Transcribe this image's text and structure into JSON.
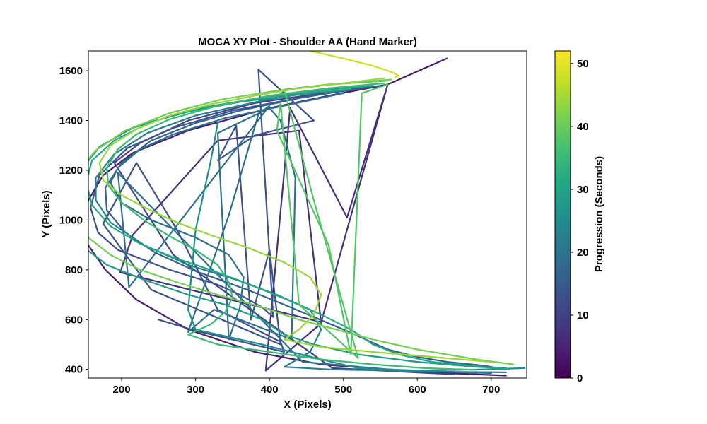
{
  "chart_data": {
    "type": "line",
    "title": "MOCA XY Plot - Shoulder AA (Hand Marker)",
    "xlabel": "X (Pixels)",
    "ylabel": "Y (Pixels)",
    "xlim": [
      155,
      748
    ],
    "ylim": [
      365,
      1680
    ],
    "x_ticks": [
      200,
      300,
      400,
      500,
      600,
      700
    ],
    "y_ticks": [
      400,
      600,
      800,
      1000,
      1200,
      1400,
      1600
    ],
    "grid": false,
    "colorbar": {
      "label": "Progression (Seconds)",
      "range": [
        0,
        52
      ],
      "ticks": [
        0,
        10,
        20,
        30,
        40,
        50
      ],
      "colormap": "viridis"
    },
    "series": [
      {
        "color_value": 4,
        "points": [
          [
            720,
            375
          ],
          [
            600,
            390
          ],
          [
            470,
            420
          ],
          [
            380,
            470
          ],
          [
            290,
            560
          ],
          [
            220,
            680
          ],
          [
            178,
            800
          ],
          [
            150,
            920
          ],
          [
            148,
            1000
          ],
          [
            155,
            1080
          ],
          [
            175,
            1180
          ],
          [
            215,
            1270
          ],
          [
            290,
            1360
          ],
          [
            400,
            1450
          ],
          [
            480,
            1500
          ],
          [
            560,
            1545
          ],
          [
            640,
            1650
          ]
        ]
      },
      {
        "color_value": 7,
        "points": [
          [
            560,
            1545
          ],
          [
            505,
            1010
          ],
          [
            428,
            1450
          ],
          [
            395,
            395
          ],
          [
            470,
            585
          ],
          [
            440,
            1360
          ],
          [
            330,
            1320
          ],
          [
            215,
            940
          ],
          [
            198,
            790
          ],
          [
            470,
            590
          ],
          [
            560,
            1545
          ]
        ]
      },
      {
        "color_value": 10,
        "points": [
          [
            550,
            1540
          ],
          [
            470,
            1510
          ],
          [
            380,
            1470
          ],
          [
            290,
            1400
          ],
          [
            225,
            1310
          ],
          [
            190,
            1230
          ],
          [
            270,
            860
          ],
          [
            485,
            405
          ],
          [
            650,
            380
          ]
        ]
      },
      {
        "color_value": 13,
        "points": [
          [
            540,
            1535
          ],
          [
            455,
            1500
          ],
          [
            350,
            1440
          ],
          [
            270,
            1370
          ],
          [
            208,
            1290
          ],
          [
            170,
            1180
          ],
          [
            158,
            1050
          ],
          [
            168,
            950
          ],
          [
            195,
            880
          ],
          [
            265,
            800
          ],
          [
            330,
            740
          ],
          [
            360,
            700
          ],
          [
            390,
            650
          ],
          [
            405,
            610
          ],
          [
            385,
            1605
          ],
          [
            460,
            1400
          ],
          [
            380,
            1340
          ],
          [
            330,
            1240
          ],
          [
            355,
            1380
          ],
          [
            375,
            600
          ],
          [
            400,
            880
          ],
          [
            415,
            500
          ],
          [
            240,
            720
          ],
          [
            175,
            985
          ],
          [
            220,
            1230
          ],
          [
            275,
            960
          ],
          [
            330,
            640
          ],
          [
            415,
            510
          ],
          [
            420,
            470
          ],
          [
            300,
            555
          ],
          [
            250,
            600
          ]
        ]
      },
      {
        "color_value": 16,
        "points": [
          [
            520,
            1530
          ],
          [
            440,
            1490
          ],
          [
            360,
            1440
          ],
          [
            300,
            1390
          ],
          [
            240,
            1320
          ],
          [
            200,
            1230
          ],
          [
            178,
            1130
          ],
          [
            180,
            1040
          ],
          [
            205,
            950
          ],
          [
            245,
            870
          ],
          [
            300,
            795
          ],
          [
            370,
            720
          ],
          [
            420,
            660
          ],
          [
            460,
            610
          ],
          [
            500,
            560
          ],
          [
            530,
            520
          ],
          [
            560,
            480
          ],
          [
            600,
            450
          ],
          [
            640,
            430
          ],
          [
            690,
            415
          ],
          [
            710,
            405
          ]
        ]
      },
      {
        "color_value": 19,
        "points": [
          [
            500,
            1510
          ],
          [
            420,
            1460
          ],
          [
            340,
            1410
          ],
          [
            270,
            1345
          ],
          [
            225,
            1285
          ],
          [
            195,
            1210
          ],
          [
            185,
            1150
          ],
          [
            200,
            1070
          ],
          [
            240,
            1000
          ],
          [
            300,
            930
          ],
          [
            345,
            860
          ],
          [
            365,
            770
          ],
          [
            360,
            650
          ],
          [
            345,
            520
          ],
          [
            330,
            1350
          ],
          [
            400,
            1450
          ],
          [
            415,
            1400
          ],
          [
            435,
            1170
          ],
          [
            430,
            520
          ],
          [
            325,
            640
          ],
          [
            290,
            550
          ],
          [
            345,
            1020
          ],
          [
            385,
            1425
          ],
          [
            400,
            1460
          ],
          [
            210,
            730
          ],
          [
            195,
            1190
          ],
          [
            445,
            430
          ],
          [
            580,
            395
          ],
          [
            700,
            385
          ]
        ]
      },
      {
        "color_value": 22,
        "points": [
          [
            545,
            1548
          ],
          [
            470,
            1520
          ],
          [
            390,
            1480
          ],
          [
            300,
            1420
          ],
          [
            235,
            1350
          ],
          [
            190,
            1265
          ],
          [
            165,
            1170
          ],
          [
            165,
            1080
          ],
          [
            185,
            990
          ],
          [
            230,
            900
          ],
          [
            290,
            820
          ],
          [
            355,
            760
          ],
          [
            410,
            700
          ],
          [
            455,
            640
          ],
          [
            470,
            560
          ],
          [
            455,
            470
          ],
          [
            420,
            410
          ],
          [
            480,
            400
          ],
          [
            560,
            395
          ],
          [
            640,
            390
          ],
          [
            720,
            388
          ]
        ]
      },
      {
        "color_value": 25,
        "points": [
          [
            330,
            1390
          ],
          [
            320,
            1230
          ],
          [
            300,
            960
          ],
          [
            290,
            640
          ],
          [
            300,
            560
          ],
          [
            390,
            500
          ],
          [
            470,
            440
          ],
          [
            520,
            405
          ],
          [
            600,
            395
          ],
          [
            690,
            400
          ],
          [
            745,
            405
          ]
        ]
      },
      {
        "color_value": 28,
        "points": [
          [
            510,
            1525
          ],
          [
            440,
            1505
          ],
          [
            360,
            1475
          ],
          [
            280,
            1430
          ],
          [
            215,
            1370
          ],
          [
            170,
            1295
          ],
          [
            145,
            1200
          ],
          [
            130,
            1110
          ],
          [
            130,
            1000
          ],
          [
            145,
            900
          ],
          [
            180,
            820
          ],
          [
            230,
            760
          ],
          [
            290,
            700
          ],
          [
            340,
            660
          ],
          [
            390,
            600
          ],
          [
            420,
            540
          ],
          [
            460,
            500
          ],
          [
            520,
            460
          ],
          [
            600,
            430
          ],
          [
            680,
            410
          ],
          [
            720,
            405
          ]
        ]
      },
      {
        "color_value": 31,
        "points": [
          [
            540,
            1540
          ],
          [
            470,
            1520
          ],
          [
            395,
            1495
          ],
          [
            315,
            1455
          ],
          [
            240,
            1395
          ],
          [
            190,
            1320
          ],
          [
            160,
            1240
          ],
          [
            152,
            1150
          ],
          [
            160,
            1060
          ],
          [
            185,
            975
          ],
          [
            225,
            905
          ],
          [
            270,
            850
          ],
          [
            320,
            800
          ],
          [
            370,
            745
          ],
          [
            420,
            685
          ],
          [
            470,
            620
          ],
          [
            510,
            560
          ],
          [
            540,
            500
          ],
          [
            575,
            460
          ],
          [
            620,
            430
          ],
          [
            670,
            415
          ],
          [
            725,
            400
          ]
        ]
      },
      {
        "color_value": 35,
        "points": [
          [
            555,
            1550
          ],
          [
            480,
            1530
          ],
          [
            400,
            1500
          ],
          [
            330,
            1460
          ],
          [
            265,
            1405
          ],
          [
            220,
            1345
          ],
          [
            195,
            1285
          ],
          [
            180,
            1210
          ],
          [
            182,
            1140
          ],
          [
            200,
            1070
          ],
          [
            230,
            1000
          ],
          [
            265,
            935
          ],
          [
            300,
            880
          ],
          [
            330,
            820
          ],
          [
            345,
            750
          ],
          [
            350,
            690
          ],
          [
            340,
            630
          ],
          [
            320,
            580
          ],
          [
            290,
            540
          ],
          [
            330,
            500
          ],
          [
            400,
            470
          ],
          [
            470,
            440
          ],
          [
            540,
            420
          ],
          [
            610,
            405
          ],
          [
            680,
            398
          ]
        ]
      },
      {
        "color_value": 38,
        "points": [
          [
            560,
            1560
          ],
          [
            480,
            1545
          ],
          [
            420,
            1525
          ],
          [
            460,
            1080
          ],
          [
            520,
            445
          ],
          [
            440,
            660
          ],
          [
            415,
            1470
          ],
          [
            410,
            1360
          ],
          [
            480,
            900
          ],
          [
            510,
            460
          ],
          [
            525,
            1510
          ],
          [
            560,
            1545
          ]
        ]
      },
      {
        "color_value": 41,
        "points": [
          [
            565,
            1565
          ],
          [
            485,
            1545
          ],
          [
            410,
            1520
          ],
          [
            335,
            1485
          ],
          [
            265,
            1430
          ],
          [
            205,
            1360
          ],
          [
            165,
            1280
          ],
          [
            140,
            1190
          ],
          [
            130,
            1100
          ],
          [
            135,
            1010
          ],
          [
            155,
            930
          ],
          [
            185,
            860
          ],
          [
            225,
            800
          ],
          [
            275,
            750
          ],
          [
            330,
            700
          ],
          [
            390,
            650
          ],
          [
            440,
            600
          ],
          [
            490,
            560
          ],
          [
            540,
            520
          ],
          [
            600,
            480
          ],
          [
            680,
            440
          ],
          [
            730,
            420
          ]
        ]
      },
      {
        "color_value": 44,
        "points": [
          [
            555,
            1570
          ],
          [
            500,
            1550
          ],
          [
            440,
            1530
          ],
          [
            380,
            1500
          ],
          [
            320,
            1465
          ],
          [
            265,
            1420
          ],
          [
            220,
            1365
          ],
          [
            185,
            1300
          ],
          [
            170,
            1230
          ],
          [
            175,
            1160
          ],
          [
            200,
            1100
          ],
          [
            235,
            1045
          ],
          [
            275,
            990
          ],
          [
            320,
            940
          ],
          [
            370,
            890
          ],
          [
            420,
            830
          ],
          [
            455,
            770
          ],
          [
            470,
            700
          ],
          [
            460,
            620
          ],
          [
            440,
            560
          ],
          [
            420,
            520
          ],
          [
            470,
            490
          ],
          [
            540,
            470
          ],
          [
            620,
            450
          ],
          [
            700,
            430
          ]
        ]
      },
      {
        "color_value": 48,
        "points": [
          [
            455,
            1680
          ],
          [
            500,
            1650
          ],
          [
            540,
            1620
          ],
          [
            565,
            1595
          ],
          [
            575,
            1580
          ],
          [
            570,
            1575
          ]
        ]
      }
    ]
  }
}
